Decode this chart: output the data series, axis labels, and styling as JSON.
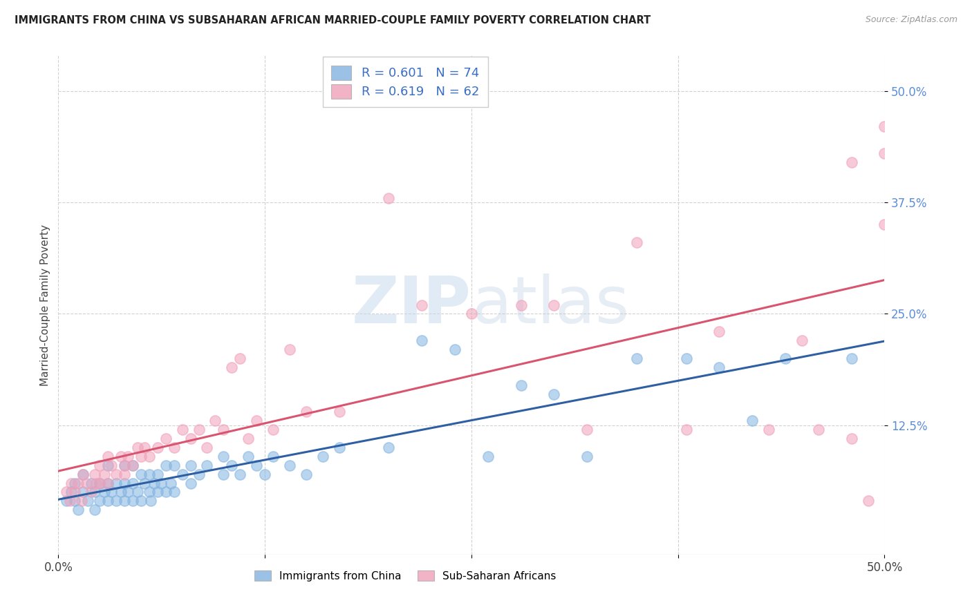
{
  "title": "IMMIGRANTS FROM CHINA VS SUBSAHARAN AFRICAN MARRIED-COUPLE FAMILY POVERTY CORRELATION CHART",
  "source": "Source: ZipAtlas.com",
  "ylabel": "Married-Couple Family Poverty",
  "yticks": [
    "50.0%",
    "37.5%",
    "25.0%",
    "12.5%"
  ],
  "ytick_vals": [
    0.5,
    0.375,
    0.25,
    0.125
  ],
  "xlim": [
    0.0,
    0.5
  ],
  "ylim": [
    -0.02,
    0.54
  ],
  "legend_china_r": "R = 0.601",
  "legend_china_n": "N = 74",
  "legend_africa_r": "R = 0.619",
  "legend_africa_n": "N = 62",
  "china_color": "#82b3e0",
  "africa_color": "#f0a0b8",
  "china_edge_color": "#82b3e0",
  "africa_edge_color": "#f0a0b8",
  "china_line_color": "#2e5fa3",
  "africa_line_color": "#d9546e",
  "watermark_color": "#c5d8ee",
  "background_color": "#ffffff",
  "grid_color": "#cccccc",
  "ytick_color": "#5b8dd9",
  "china_scatter_x": [
    0.005,
    0.008,
    0.01,
    0.01,
    0.012,
    0.015,
    0.015,
    0.018,
    0.02,
    0.022,
    0.022,
    0.025,
    0.025,
    0.028,
    0.03,
    0.03,
    0.03,
    0.032,
    0.035,
    0.035,
    0.038,
    0.04,
    0.04,
    0.04,
    0.042,
    0.045,
    0.045,
    0.045,
    0.048,
    0.05,
    0.05,
    0.052,
    0.055,
    0.055,
    0.056,
    0.058,
    0.06,
    0.06,
    0.062,
    0.065,
    0.065,
    0.068,
    0.07,
    0.07,
    0.075,
    0.08,
    0.08,
    0.085,
    0.09,
    0.1,
    0.1,
    0.105,
    0.11,
    0.115,
    0.12,
    0.125,
    0.13,
    0.14,
    0.15,
    0.16,
    0.17,
    0.2,
    0.22,
    0.24,
    0.26,
    0.28,
    0.3,
    0.32,
    0.35,
    0.38,
    0.4,
    0.42,
    0.44,
    0.48
  ],
  "china_scatter_y": [
    0.04,
    0.05,
    0.04,
    0.06,
    0.03,
    0.05,
    0.07,
    0.04,
    0.06,
    0.03,
    0.05,
    0.04,
    0.06,
    0.05,
    0.04,
    0.06,
    0.08,
    0.05,
    0.04,
    0.06,
    0.05,
    0.04,
    0.06,
    0.08,
    0.05,
    0.04,
    0.06,
    0.08,
    0.05,
    0.04,
    0.07,
    0.06,
    0.05,
    0.07,
    0.04,
    0.06,
    0.05,
    0.07,
    0.06,
    0.05,
    0.08,
    0.06,
    0.05,
    0.08,
    0.07,
    0.06,
    0.08,
    0.07,
    0.08,
    0.07,
    0.09,
    0.08,
    0.07,
    0.09,
    0.08,
    0.07,
    0.09,
    0.08,
    0.07,
    0.09,
    0.1,
    0.1,
    0.22,
    0.21,
    0.09,
    0.17,
    0.16,
    0.09,
    0.2,
    0.2,
    0.19,
    0.13,
    0.2,
    0.2
  ],
  "africa_scatter_x": [
    0.005,
    0.007,
    0.008,
    0.01,
    0.012,
    0.014,
    0.015,
    0.017,
    0.02,
    0.022,
    0.023,
    0.025,
    0.025,
    0.028,
    0.03,
    0.03,
    0.032,
    0.035,
    0.038,
    0.04,
    0.04,
    0.042,
    0.045,
    0.048,
    0.05,
    0.052,
    0.055,
    0.06,
    0.065,
    0.07,
    0.075,
    0.08,
    0.085,
    0.09,
    0.095,
    0.1,
    0.105,
    0.11,
    0.115,
    0.12,
    0.13,
    0.14,
    0.15,
    0.17,
    0.2,
    0.22,
    0.25,
    0.28,
    0.3,
    0.32,
    0.35,
    0.38,
    0.4,
    0.43,
    0.45,
    0.46,
    0.48,
    0.49,
    0.5,
    0.5,
    0.5,
    0.48
  ],
  "africa_scatter_y": [
    0.05,
    0.04,
    0.06,
    0.05,
    0.06,
    0.04,
    0.07,
    0.06,
    0.05,
    0.07,
    0.06,
    0.08,
    0.06,
    0.07,
    0.06,
    0.09,
    0.08,
    0.07,
    0.09,
    0.08,
    0.07,
    0.09,
    0.08,
    0.1,
    0.09,
    0.1,
    0.09,
    0.1,
    0.11,
    0.1,
    0.12,
    0.11,
    0.12,
    0.1,
    0.13,
    0.12,
    0.19,
    0.2,
    0.11,
    0.13,
    0.12,
    0.21,
    0.14,
    0.14,
    0.38,
    0.26,
    0.25,
    0.26,
    0.26,
    0.12,
    0.33,
    0.12,
    0.23,
    0.12,
    0.22,
    0.12,
    0.11,
    0.04,
    0.35,
    0.43,
    0.46,
    0.42
  ]
}
